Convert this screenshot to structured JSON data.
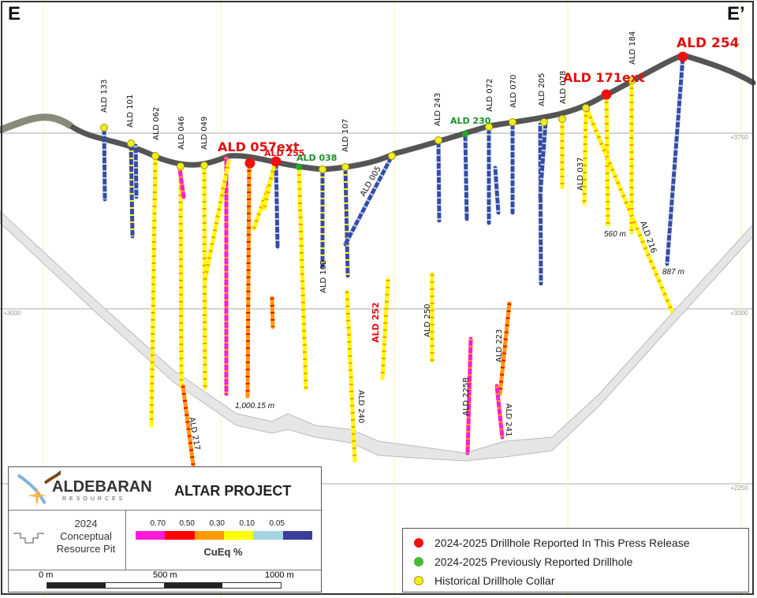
{
  "section": {
    "left_label": "E",
    "right_label": "E’"
  },
  "elevations": {
    "top": "+3750",
    "mid": "+3000",
    "bottom": "+2250"
  },
  "colors": {
    "magenta": "#ff1ad9",
    "red": "#ff0000",
    "orange": "#ff9900",
    "yellow": "#ffff00",
    "lightblue": "#a6d5e3",
    "blue": "#3a49a8",
    "reported": "#ee1111",
    "previous": "#22aa22",
    "historical": "#eeee22"
  },
  "drillholes": [
    {
      "label": "ALD 133",
      "type": "historical"
    },
    {
      "label": "ALD 101",
      "type": "historical"
    },
    {
      "label": "ALD 062",
      "type": "historical"
    },
    {
      "label": "ALD 046",
      "type": "historical"
    },
    {
      "label": "ALD 049",
      "type": "historical"
    },
    {
      "label": "ALD 057ext",
      "type": "reported"
    },
    {
      "label": "ALD 255",
      "type": "reported"
    },
    {
      "label": "ALD 038",
      "type": "previous"
    },
    {
      "label": "ALD 102",
      "type": "historical"
    },
    {
      "label": "ALD 107",
      "type": "historical"
    },
    {
      "label": "ALD 005",
      "type": "historical"
    },
    {
      "label": "ALD 243",
      "type": "historical"
    },
    {
      "label": "ALD 230",
      "type": "previous"
    },
    {
      "label": "ALD 072",
      "type": "historical"
    },
    {
      "label": "ALD 070",
      "type": "historical"
    },
    {
      "label": "ALD 205",
      "type": "historical"
    },
    {
      "label": "ALD 078",
      "type": "historical"
    },
    {
      "label": "ALD 037",
      "type": "historical"
    },
    {
      "label": "ALD 171ext",
      "type": "reported"
    },
    {
      "label": "ALD 184",
      "type": "historical"
    },
    {
      "label": "ALD 216",
      "type": "historical"
    },
    {
      "label": "ALD 254",
      "type": "reported"
    },
    {
      "label": "ALD 240",
      "type": "historical"
    },
    {
      "label": "ALD 252",
      "type": "reported"
    },
    {
      "label": "ALD 250",
      "type": "historical"
    },
    {
      "label": "ALD 225B",
      "type": "historical"
    },
    {
      "label": "ALD 223",
      "type": "historical"
    },
    {
      "label": "ALD 241",
      "type": "historical"
    },
    {
      "label": "ALD 217",
      "type": "historical"
    }
  ],
  "depths": {
    "ald057ext": "1,000.15 m",
    "ald171ext": "560 m",
    "ald254": "887 m"
  },
  "title_block": {
    "company": "ALDEBARAN",
    "company_sub": "RESOURCES",
    "project": "ALTAR PROJECT",
    "pit_legend": [
      "2024",
      "Conceptual",
      "Resource Pit"
    ],
    "grade_ticks": [
      "0.70",
      "0.50",
      "0.30",
      "0.10",
      "0.05"
    ],
    "grade_unit": "CuEq %",
    "scale": [
      "0 m",
      "500 m",
      "1000 m"
    ]
  },
  "legend": [
    {
      "label": "2024-2025 Drillhole Reported In This Press Release",
      "color": "#ee1111"
    },
    {
      "label": "2024-2025 Previously Reported Drillhole",
      "color": "#33bb33"
    },
    {
      "label": "Historical Drillhole Collar",
      "color": "#eeee22"
    }
  ]
}
